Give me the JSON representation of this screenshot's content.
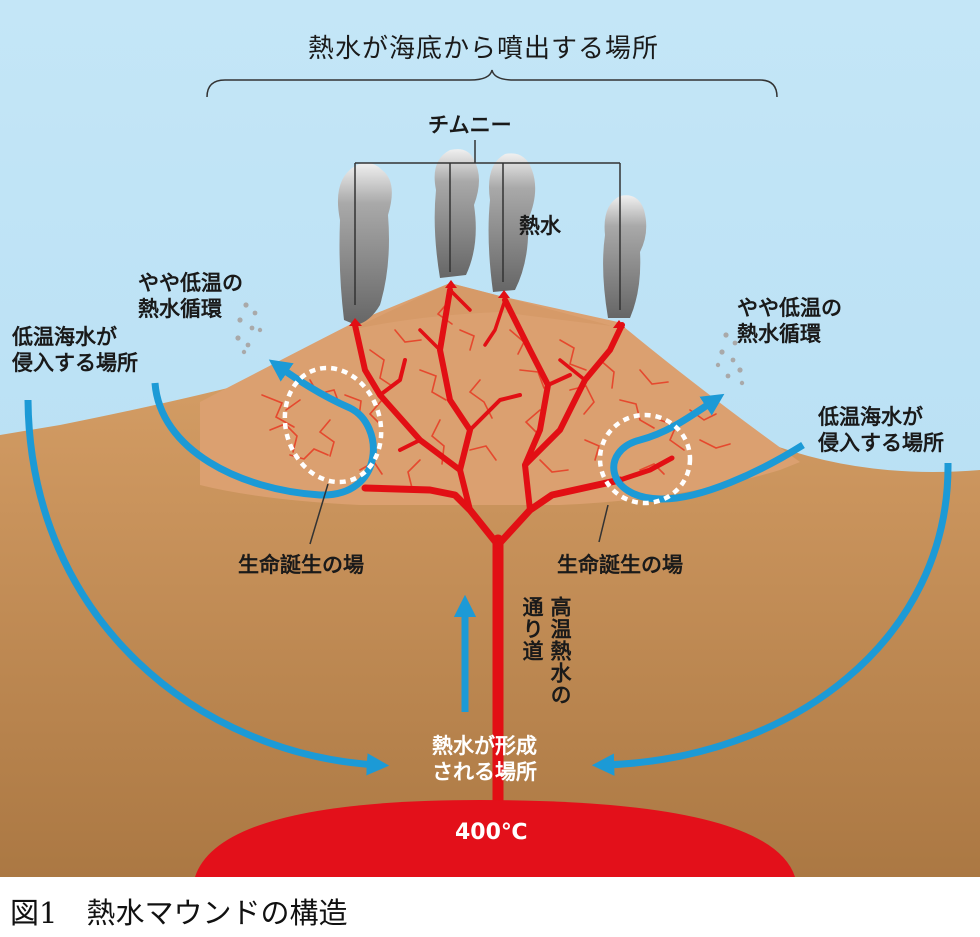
{
  "title": "熱水が海底から噴出する場所",
  "labels": {
    "chimney": "チムニー",
    "hot_water": "熱水",
    "low_temp_cycle_left": [
      "やや低温の",
      "熱水循環"
    ],
    "low_temp_cycle_right": [
      "やや低温の",
      "熱水循環"
    ],
    "cold_seawater_left": [
      "低温海水が",
      "侵入する場所"
    ],
    "cold_seawater_right": [
      "低温海水が",
      "侵入する場所"
    ],
    "birthplace_left": "生命誕生の場",
    "birthplace_right": "生命誕生の場",
    "hot_water_path": [
      "高温熱水の",
      "通り道"
    ],
    "formation_place": [
      "熱水が形成",
      "される場所"
    ],
    "temperature": "400℃"
  },
  "caption": "図1　熱水マウンドの構造",
  "colors": {
    "sea": "#bfe3f5",
    "sediment_top": "#d19a62",
    "sediment_bottom": "#ae7a45",
    "mound": "#dba070",
    "vein": "#e20f14",
    "crack": "#e5492e",
    "arrow": "#1c9ad6",
    "smoke": "#7d7d7d",
    "magma": "#e3101a"
  }
}
